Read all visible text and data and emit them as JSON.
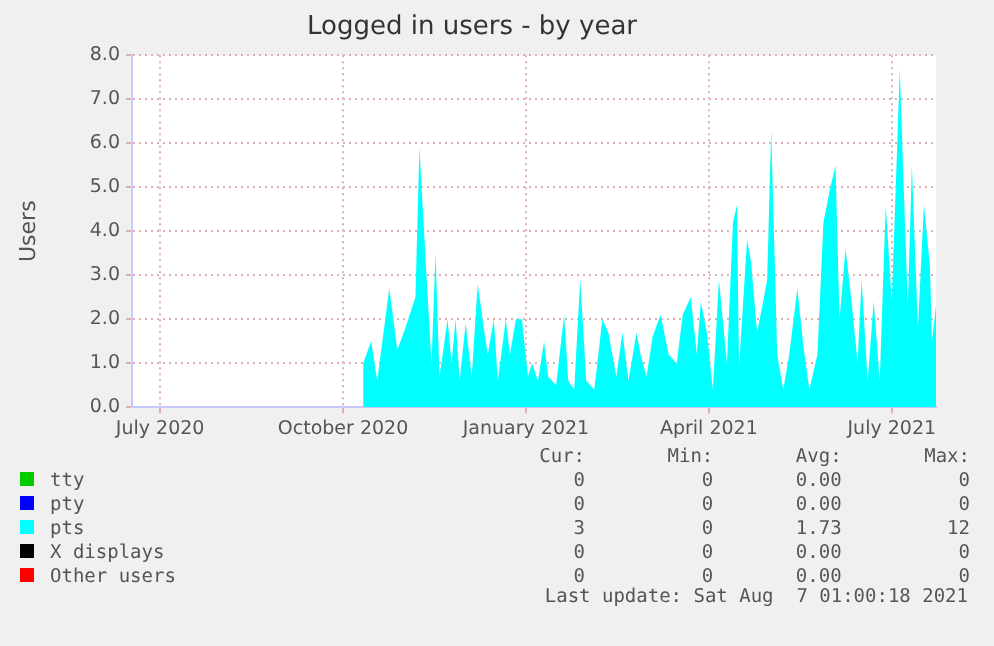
{
  "chart_data": {
    "type": "area",
    "title": "Logged in users - by year",
    "ylabel": "Users",
    "xlim": [
      "2020-07-03",
      "2021-08-07"
    ],
    "xticks": [
      {
        "value": "2020-07-17",
        "label": "July 2020"
      },
      {
        "value": "2020-10-16",
        "label": "October 2020"
      },
      {
        "value": "2021-01-15",
        "label": "January 2021"
      },
      {
        "value": "2021-04-16",
        "label": "April 2021"
      },
      {
        "value": "2021-07-16",
        "label": "July 2021"
      }
    ],
    "ylim": [
      0,
      8
    ],
    "yticks": [
      {
        "value": 0,
        "label": "0.0"
      },
      {
        "value": 1,
        "label": "1.0"
      },
      {
        "value": 2,
        "label": "2.0"
      },
      {
        "value": 3,
        "label": "3.0"
      },
      {
        "value": 4,
        "label": "4.0"
      },
      {
        "value": 5,
        "label": "5.0"
      },
      {
        "value": 6,
        "label": "6.0"
      },
      {
        "value": 7,
        "label": "7.0"
      },
      {
        "value": 8,
        "label": "8.0"
      }
    ],
    "grid": true,
    "legend": "bottom",
    "marker": "none",
    "series": [
      {
        "name": "tty",
        "color": "#00cc00"
      },
      {
        "name": "pty",
        "color": "#0000ff"
      },
      {
        "name": "pts",
        "color": "#00ffff",
        "x": [
          "2020-10-26",
          "2020-10-30",
          "2020-11-02",
          "2020-11-08",
          "2020-11-12",
          "2020-11-16",
          "2020-11-21",
          "2020-11-23",
          "2020-11-27",
          "2020-11-29",
          "2020-12-01",
          "2020-12-03",
          "2020-12-07",
          "2020-12-09",
          "2020-12-11",
          "2020-12-13",
          "2020-12-16",
          "2020-12-19",
          "2020-12-22",
          "2020-12-25",
          "2020-12-27",
          "2020-12-30",
          "2021-01-01",
          "2021-01-05",
          "2021-01-07",
          "2021-01-10",
          "2021-01-13",
          "2021-01-16",
          "2021-01-18",
          "2021-01-21",
          "2021-01-24",
          "2021-01-26",
          "2021-01-30",
          "2021-02-03",
          "2021-02-05",
          "2021-02-08",
          "2021-02-11",
          "2021-02-14",
          "2021-02-18",
          "2021-02-22",
          "2021-02-25",
          "2021-03-01",
          "2021-03-04",
          "2021-03-07",
          "2021-03-11",
          "2021-03-13",
          "2021-03-16",
          "2021-03-19",
          "2021-03-23",
          "2021-03-27",
          "2021-03-31",
          "2021-04-03",
          "2021-04-07",
          "2021-04-10",
          "2021-04-12",
          "2021-04-15",
          "2021-04-18",
          "2021-04-21",
          "2021-04-25",
          "2021-04-28",
          "2021-04-30",
          "2021-05-01",
          "2021-05-05",
          "2021-05-07",
          "2021-05-10",
          "2021-05-13",
          "2021-05-15",
          "2021-05-17",
          "2021-05-20",
          "2021-05-23",
          "2021-05-26",
          "2021-05-30",
          "2021-06-02",
          "2021-06-05",
          "2021-06-09",
          "2021-06-12",
          "2021-06-15",
          "2021-06-18",
          "2021-06-20",
          "2021-06-23",
          "2021-06-26",
          "2021-06-29",
          "2021-07-01",
          "2021-07-04",
          "2021-07-07",
          "2021-07-10",
          "2021-07-13",
          "2021-07-16",
          "2021-07-20",
          "2021-07-22",
          "2021-07-24",
          "2021-07-26",
          "2021-07-29",
          "2021-08-01",
          "2021-08-04",
          "2021-08-05",
          "2021-08-07"
        ],
        "values": [
          1.0,
          1.5,
          0.6,
          2.7,
          1.3,
          1.8,
          2.5,
          5.9,
          2.6,
          1.0,
          3.5,
          0.7,
          2.0,
          1.0,
          2.0,
          0.6,
          1.9,
          0.7,
          2.8,
          1.8,
          1.2,
          2.0,
          0.6,
          2.0,
          1.2,
          2.0,
          2.0,
          0.7,
          1.0,
          0.6,
          1.5,
          0.7,
          0.5,
          2.1,
          0.6,
          0.4,
          2.9,
          0.6,
          0.4,
          2.0,
          1.7,
          0.7,
          1.7,
          0.6,
          1.7,
          1.2,
          0.7,
          1.6,
          2.1,
          1.2,
          1.0,
          2.1,
          2.5,
          1.2,
          2.4,
          1.7,
          0.4,
          2.9,
          1.0,
          4.2,
          4.6,
          0.9,
          3.8,
          3.3,
          1.7,
          2.4,
          2.9,
          6.3,
          1.2,
          0.4,
          1.2,
          2.7,
          1.4,
          0.4,
          1.2,
          4.2,
          4.9,
          5.5,
          2.0,
          3.6,
          2.4,
          1.0,
          2.9,
          0.6,
          2.4,
          0.6,
          4.6,
          2.4,
          7.7,
          4.9,
          2.3,
          5.5,
          1.8,
          4.6,
          3.2,
          1.5,
          2.3
        ]
      },
      {
        "name": "X displays",
        "color": "#000000"
      },
      {
        "name": "Other users",
        "color": "#ff0000"
      }
    ],
    "annotations": [
      "Cur:",
      "Min:",
      "Avg:",
      "Max:",
      "0",
      "0",
      "0.00",
      "0",
      "0",
      "0",
      "0.00",
      "0",
      "3",
      "0",
      "1.73",
      "12",
      "0",
      "0",
      "0.00",
      "0",
      "0",
      "0",
      "0.00",
      "0",
      "Last update: Sat Aug  7 01:00:18 2021"
    ]
  }
}
